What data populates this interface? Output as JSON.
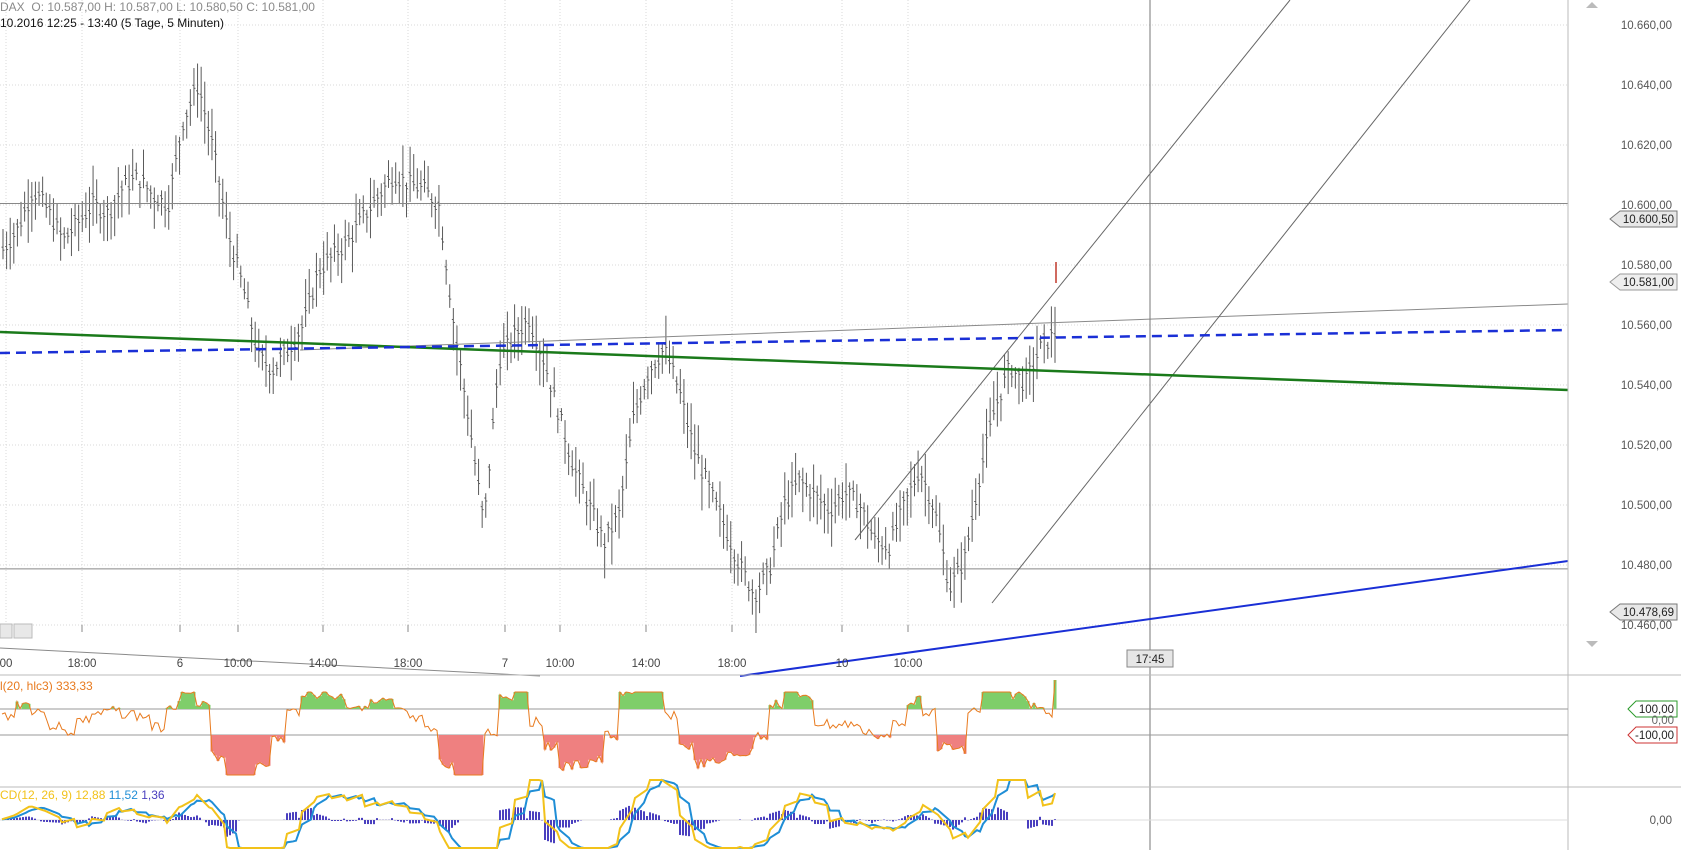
{
  "header": {
    "symbol": "DAX",
    "ohlc": "O: 10.587,00   H: 10.587,00   L: 10.580,50   C: 10.581,00",
    "range": "10.2016 12:25 - 13:40 (5 Tage, 5 Minuten)"
  },
  "price_axis": [
    "10.660,00",
    "10.640,00",
    "10.620,00",
    "10.600,00",
    "10.580,00",
    "10.560,00",
    "10.540,00",
    "10.520,00",
    "10.500,00",
    "10.480,00",
    "10.460,00"
  ],
  "time_axis": [
    "00",
    "18:00",
    "6",
    "10:00",
    "14:00",
    "18:00",
    "7",
    "10:00",
    "14:00",
    "18:00",
    "10",
    "10:00"
  ],
  "crosshair_time": "17:45",
  "price_tags": {
    "upper_hline": "10.600,50",
    "last": "10.581,00",
    "lower_hline": "10.478,69"
  },
  "cci": {
    "label": "l(20, hlc3)",
    "value": "333,33",
    "upper": "100,00",
    "zero": "0,00",
    "lower": "-100,00"
  },
  "macd": {
    "label": "CD(12, 26, 9)",
    "v1": "12,88",
    "v2": "11,52",
    "v3": "1,36",
    "zero": "0,00"
  },
  "colors": {
    "price_bars": "#5a5a5a",
    "green_trend": "#1a7a1a",
    "blue_trend": "#1a2fd6",
    "cci_line": "#e87a1e",
    "cci_up_fill": "#7fce6a",
    "cci_down_fill": "#ef8080",
    "macd_line": "#f2c21a",
    "signal_line": "#1f8ed6",
    "histogram": "#4a3fbf"
  },
  "chart_data": {
    "type": "ohlc",
    "title": "DAX",
    "timeframe": "5 Tage, 5 Minuten",
    "ylim": [
      10456,
      10666
    ],
    "x_labels": [
      "00",
      "18:00",
      "6",
      "10:00",
      "14:00",
      "18:00",
      "7",
      "10:00",
      "14:00",
      "18:00",
      "10",
      "10:00"
    ],
    "close_profile": [
      10585,
      10592,
      10605,
      10598,
      10588,
      10594,
      10600,
      10597,
      10606,
      10609,
      10603,
      10600,
      10628,
      10640,
      10618,
      10590,
      10572,
      10549,
      10545,
      10552,
      10560,
      10578,
      10583,
      10588,
      10596,
      10603,
      10610,
      10607,
      10605,
      10600,
      10560,
      10528,
      10493,
      10548,
      10556,
      10562,
      10548,
      10530,
      10512,
      10500,
      10487,
      10497,
      10530,
      10545,
      10552,
      10538,
      10518,
      10505,
      10493,
      10480,
      10470,
      10478,
      10500,
      10508,
      10503,
      10498,
      10504,
      10500,
      10488,
      10486,
      10500,
      10512,
      10498,
      10472,
      10482,
      10510,
      10532,
      10546,
      10540,
      10552,
      10557
    ],
    "last_close": 10581.0,
    "horizontal_lines": [
      10600.5,
      10478.69
    ],
    "cci": {
      "period": 20,
      "source": "hlc3",
      "last": 333.33,
      "levels": [
        100,
        -100
      ]
    },
    "macd": {
      "params": [
        12,
        26,
        9
      ],
      "macd": 12.88,
      "signal": 11.52,
      "hist": 1.36
    }
  }
}
